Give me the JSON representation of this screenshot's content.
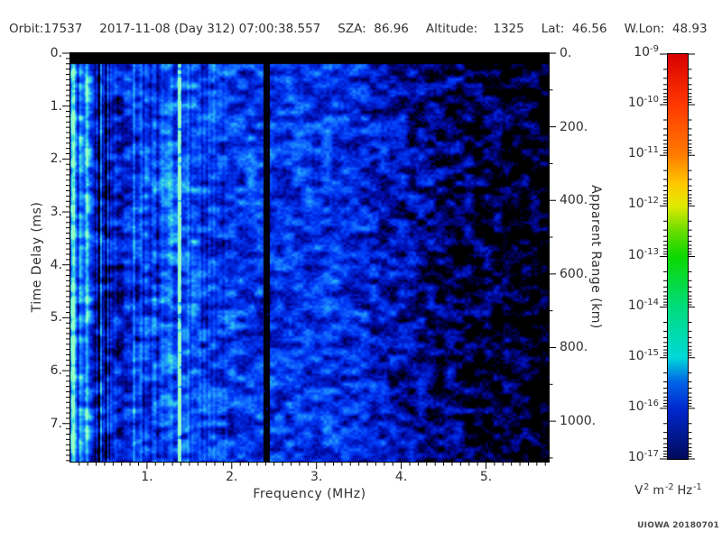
{
  "header": {
    "segments": [
      "Orbit:17537",
      "2017-11-08 (Day 312) 07:00:38.557",
      "SZA:  86.96",
      "Altitude:    1325",
      "Lat:  46.56",
      "W.Lon:  48.93"
    ]
  },
  "credit": "UIOWA 20180701",
  "chart_data": {
    "type": "heatmap",
    "description": "Radar sounder ionogram spectrogram: received spectral density vs frequency and time delay",
    "xlabel": "Frequency (MHz)",
    "ylabel_left": "Time Delay (ms)",
    "ylabel_right": "Apparent Range (km)",
    "x_range_mhz": [
      0.096,
      5.74
    ],
    "x_ticks": [
      1,
      2,
      3,
      4,
      5
    ],
    "x_tick_labels": [
      "1.",
      "2.",
      "3.",
      "4.",
      "5."
    ],
    "x_minor_step_mhz": 0.1,
    "y_left_range_ms": [
      0,
      7.72
    ],
    "y_left_ticks": [
      0,
      1,
      2,
      3,
      4,
      5,
      6,
      7
    ],
    "y_left_tick_labels": [
      "0.",
      "1.",
      "2.",
      "3.",
      "4.",
      "5.",
      "6.",
      "7."
    ],
    "y_left_minor_step_ms": 0.1,
    "y_right_range_km": [
      0,
      1110
    ],
    "y_right_ticks": [
      0,
      200,
      400,
      600,
      800,
      1000
    ],
    "y_right_tick_labels": [
      "0.",
      "200.",
      "400.",
      "600.",
      "800.",
      "1000."
    ],
    "y_right_minor_step_km": 100,
    "grid": false,
    "colorbar": {
      "scale": "log",
      "max": "1e-9",
      "min": "1e-17",
      "tick_exponents": [
        -9,
        -10,
        -11,
        -12,
        -13,
        -14,
        -15,
        -16,
        -17
      ],
      "units_parts": [
        {
          "base": "V",
          "exp": "2"
        },
        {
          "base": "m",
          "exp": "-2"
        },
        {
          "base": "Hz",
          "exp": "-1"
        }
      ],
      "colors_top_to_bottom": [
        "#d80000",
        "#ff3800",
        "#ff7c00",
        "#e0ea00",
        "#0cd800",
        "#00dc7c",
        "#00d8d8",
        "#0028d0",
        "#000a5a"
      ]
    },
    "features": {
      "top_blackout_band_ms": [
        0,
        0.2
      ],
      "background": "blue speckle noise field, brightness decreasing toward high frequency",
      "bright_resonance_line_mhz": 1.38,
      "bright_line_color": "#55eebb",
      "dark_blank_band_mhz": [
        2.37,
        2.44
      ],
      "dark_column_region_mhz": [
        0.38,
        0.56
      ],
      "bright_columns_mhz": [
        0.12,
        0.3,
        0.84
      ],
      "mostly_black_above_mhz": 4.3
    },
    "noise_seed": 12345
  }
}
